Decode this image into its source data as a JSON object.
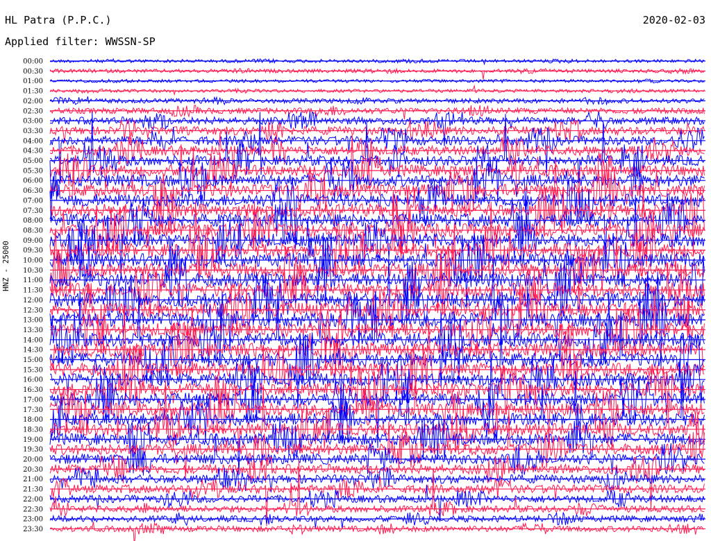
{
  "header": {
    "station": "HL Patra (P.P.C.)",
    "date": "2020-02-03",
    "filter": "Applied filter: WWSSN-SP"
  },
  "side_label": "HNZ - 25000",
  "colors": {
    "blue": "#0000ff",
    "red": "#ff1a4f"
  },
  "chart_data": {
    "type": "line",
    "title": "HL Patra (P.P.C.)",
    "subtitle": "Applied filter: WWSSN-SP",
    "ylabel": "HNZ - 25000",
    "row_labels": [
      "00:00",
      "00:30",
      "01:00",
      "01:30",
      "02:00",
      "02:30",
      "03:00",
      "03:30",
      "04:00",
      "04:30",
      "05:00",
      "05:30",
      "06:00",
      "06:30",
      "07:00",
      "07:30",
      "08:00",
      "08:30",
      "09:00",
      "09:30",
      "10:00",
      "10:30",
      "11:00",
      "11:30",
      "12:00",
      "12:30",
      "13:00",
      "13:30",
      "14:00",
      "14:30",
      "15:00",
      "15:30",
      "16:00",
      "16:30",
      "17:00",
      "17:30",
      "18:00",
      "18:30",
      "19:00",
      "19:30",
      "20:00",
      "20:30",
      "21:00",
      "21:30",
      "22:00",
      "22:30",
      "23:00",
      "23:30"
    ],
    "row_colors": [
      "blue",
      "red"
    ],
    "activity_level": [
      0.15,
      0.2,
      0.12,
      0.15,
      0.3,
      0.45,
      0.65,
      0.75,
      0.85,
      0.9,
      1.0,
      1.1,
      1.2,
      1.25,
      1.3,
      1.3,
      1.3,
      1.3,
      1.35,
      1.35,
      1.4,
      1.4,
      1.4,
      1.4,
      1.4,
      1.4,
      1.4,
      1.4,
      1.4,
      1.4,
      1.4,
      1.35,
      1.3,
      1.3,
      1.3,
      1.3,
      1.25,
      1.2,
      1.15,
      1.1,
      1.0,
      0.9,
      0.8,
      0.75,
      0.65,
      0.55,
      0.5,
      0.45
    ]
  }
}
